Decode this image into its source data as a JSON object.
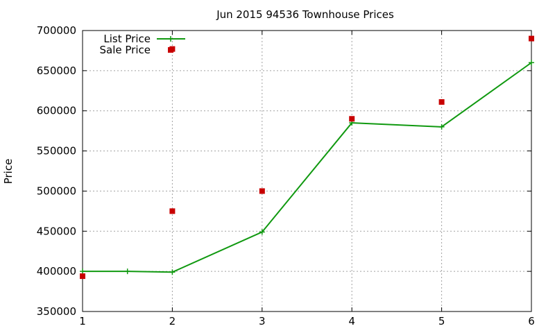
{
  "chart_data": {
    "type": "line",
    "title": "Jun 2015 94536 Townhouse Prices",
    "xlabel": "",
    "ylabel": "Price",
    "xlim": [
      1,
      6
    ],
    "ylim": [
      350000,
      700000
    ],
    "xticks": [
      "1",
      "2",
      "3",
      "4",
      "5",
      "6"
    ],
    "yticks": [
      "350000",
      "400000",
      "450000",
      "500000",
      "550000",
      "600000",
      "650000",
      "700000"
    ],
    "grid": true,
    "legend_position": "top-left",
    "series": [
      {
        "name": "List Price",
        "style": "line-plus",
        "color": "#109910",
        "x": [
          1,
          1.5,
          2,
          3,
          4,
          5,
          6
        ],
        "y": [
          400000,
          400000,
          399000,
          449000,
          585000,
          580000,
          660000
        ]
      },
      {
        "name": "Sale Price",
        "style": "square-points",
        "color": "#c80000",
        "x": [
          1,
          2,
          2,
          3,
          4,
          5,
          6
        ],
        "y": [
          394000,
          475000,
          677000,
          500000,
          590000,
          611000,
          690000
        ]
      }
    ]
  }
}
